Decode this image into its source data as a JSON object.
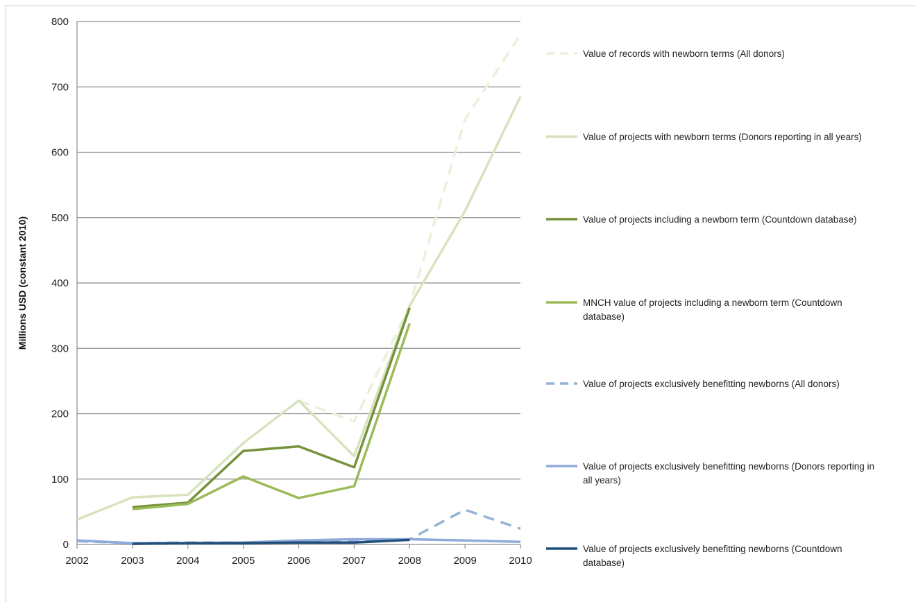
{
  "chart_data": {
    "type": "line",
    "ylabel": "Millions USD (constant 2010)",
    "xlabel": "",
    "x": [
      "2002",
      "2003",
      "2004",
      "2005",
      "2006",
      "2007",
      "2008",
      "2009",
      "2010"
    ],
    "xlim": [
      2002,
      2010
    ],
    "ylim": [
      0,
      800
    ],
    "yticks": [
      "0",
      "100",
      "200",
      "300",
      "400",
      "500",
      "600",
      "700",
      "800"
    ],
    "grid": true,
    "legend_position": "right",
    "series": [
      {
        "name_lines": [
          "Value of records with newborn terms (All donors)"
        ],
        "color": "#ebf0da",
        "dash": true,
        "width": 3.5,
        "points": [
          [
            2006,
            220
          ],
          [
            2007,
            188
          ],
          [
            2008,
            365
          ],
          [
            2009,
            650
          ],
          [
            2010,
            780
          ]
        ]
      },
      {
        "name_lines": [
          "Value of projects with newborn terms (Donors reporting in all years)"
        ],
        "color": "#d6e3bc",
        "dash": false,
        "width": 3.5,
        "points": [
          [
            2002,
            38
          ],
          [
            2003,
            72
          ],
          [
            2004,
            76
          ],
          [
            2005,
            155
          ],
          [
            2006,
            220
          ],
          [
            2007,
            135
          ],
          [
            2008,
            365
          ],
          [
            2009,
            510
          ],
          [
            2010,
            685
          ]
        ]
      },
      {
        "name_lines": [
          "Value of projects including a newborn term (Countdown database)"
        ],
        "color": "#76923c",
        "dash": false,
        "width": 3.5,
        "points": [
          [
            2003,
            57
          ],
          [
            2004,
            64
          ],
          [
            2005,
            143
          ],
          [
            2006,
            150
          ],
          [
            2007,
            118
          ],
          [
            2008,
            362
          ]
        ]
      },
      {
        "name_lines": [
          "MNCH value of projects including a newborn term (Countdown",
          "database)"
        ],
        "color": "#9bbb59",
        "dash": false,
        "width": 3.5,
        "points": [
          [
            2003,
            54
          ],
          [
            2004,
            62
          ],
          [
            2005,
            104
          ],
          [
            2006,
            71
          ],
          [
            2007,
            89
          ],
          [
            2008,
            338
          ]
        ]
      },
      {
        "name_lines": [
          "Value of projects exclusively benefitting newborns (All donors)"
        ],
        "color": "#95b3d7",
        "dash": true,
        "width": 3.5,
        "points": [
          [
            2002,
            5
          ],
          [
            2003,
            2
          ],
          [
            2004,
            3
          ],
          [
            2005,
            3
          ],
          [
            2006,
            5
          ],
          [
            2007,
            5
          ],
          [
            2008,
            8
          ],
          [
            2009,
            53
          ],
          [
            2010,
            24
          ]
        ]
      },
      {
        "name_lines": [
          "Value of projects exclusively benefitting newborns (Donors reporting in",
          "all years)"
        ],
        "color": "#8eaadb",
        "dash": false,
        "width": 3.5,
        "points": [
          [
            2002,
            6
          ],
          [
            2003,
            2
          ],
          [
            2004,
            2
          ],
          [
            2005,
            3
          ],
          [
            2006,
            6
          ],
          [
            2007,
            8
          ],
          [
            2008,
            8
          ],
          [
            2009,
            6
          ],
          [
            2010,
            4
          ]
        ]
      },
      {
        "name_lines": [
          "Value of projects exclusively benefitting newborns (Countdown",
          "database)"
        ],
        "color": "#1f4e79",
        "dash": false,
        "width": 3.5,
        "points": [
          [
            2003,
            1
          ],
          [
            2004,
            2
          ],
          [
            2005,
            2
          ],
          [
            2006,
            3
          ],
          [
            2007,
            3
          ],
          [
            2008,
            7
          ]
        ]
      }
    ]
  }
}
